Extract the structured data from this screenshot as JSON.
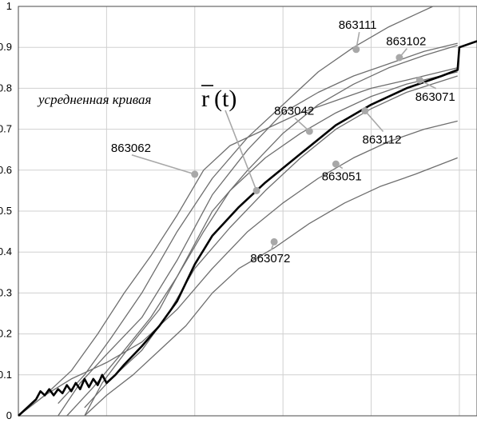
{
  "chart_data": {
    "type": "line",
    "title": "",
    "xlabel": "",
    "ylabel": "",
    "xlim": [
      0,
      5.2
    ],
    "ylim": [
      0,
      1
    ],
    "y_ticks": [
      "0",
      "0.1",
      "0.2",
      "0.3",
      "0.4",
      "0.5",
      "0.6",
      "0.7",
      "0.8",
      "0.9",
      "1"
    ],
    "x_grid": [
      0,
      1,
      2,
      3,
      4,
      5
    ],
    "grid": true,
    "colors": {
      "series": "#6e6e6e",
      "average": "#000000",
      "grid": "#d0d0d0",
      "marker": "#a8a8a8"
    },
    "annotation": {
      "text": "усредненная кривая",
      "formula": {
        "bar": "r",
        "arg": "(t)"
      },
      "pointer_to": [
        2.7,
        0.55
      ]
    },
    "series": [
      {
        "name": "863111",
        "label_at": [
          3.63,
          0.945
        ],
        "marker_at": [
          3.83,
          0.895
        ],
        "points": [
          [
            0.45,
            0.03
          ],
          [
            0.75,
            0.1
          ],
          [
            1.05,
            0.19
          ],
          [
            1.4,
            0.3
          ],
          [
            1.8,
            0.45
          ],
          [
            2.2,
            0.58
          ],
          [
            2.6,
            0.68
          ],
          [
            3.0,
            0.76
          ],
          [
            3.4,
            0.84
          ],
          [
            3.8,
            0.9
          ],
          [
            4.2,
            0.95
          ],
          [
            4.5,
            0.98
          ],
          [
            4.7,
            1.0
          ]
        ]
      },
      {
        "name": "863102",
        "label_at": [
          4.17,
          0.905
        ],
        "marker_at": [
          4.32,
          0.875
        ],
        "points": [
          [
            0.45,
            0.0
          ],
          [
            0.7,
            0.08
          ],
          [
            1.0,
            0.15
          ],
          [
            1.4,
            0.24
          ],
          [
            1.8,
            0.38
          ],
          [
            2.2,
            0.54
          ],
          [
            2.6,
            0.65
          ],
          [
            3.0,
            0.74
          ],
          [
            3.4,
            0.79
          ],
          [
            3.8,
            0.83
          ],
          [
            4.2,
            0.86
          ],
          [
            4.6,
            0.89
          ],
          [
            4.98,
            0.91
          ]
        ]
      },
      {
        "name": "863071",
        "label_at": [
          4.5,
          0.77
        ],
        "marker_at": [
          4.55,
          0.82
        ],
        "points": [
          [
            0.75,
            0.0
          ],
          [
            0.95,
            0.08
          ],
          [
            1.3,
            0.18
          ],
          [
            1.6,
            0.26
          ],
          [
            1.9,
            0.38
          ],
          [
            2.2,
            0.5
          ],
          [
            2.6,
            0.6
          ],
          [
            3.0,
            0.69
          ],
          [
            3.4,
            0.76
          ],
          [
            3.8,
            0.81
          ],
          [
            4.2,
            0.85
          ],
          [
            4.6,
            0.88
          ],
          [
            4.98,
            0.905
          ]
        ]
      },
      {
        "name": "863062",
        "label_at": [
          1.05,
          0.645
        ],
        "marker_at": [
          2.0,
          0.59
        ],
        "points": [
          [
            0.0,
            0.0
          ],
          [
            0.3,
            0.05
          ],
          [
            0.6,
            0.11
          ],
          [
            0.9,
            0.2
          ],
          [
            1.2,
            0.3
          ],
          [
            1.5,
            0.39
          ],
          [
            1.8,
            0.49
          ],
          [
            2.1,
            0.6
          ],
          [
            2.4,
            0.66
          ],
          [
            2.8,
            0.7
          ],
          [
            3.2,
            0.74
          ],
          [
            3.6,
            0.77
          ],
          [
            4.0,
            0.8
          ],
          [
            4.4,
            0.82
          ],
          [
            4.98,
            0.85
          ]
        ]
      },
      {
        "name": "863042",
        "label_at": [
          2.9,
          0.735
        ],
        "marker_at": [
          3.3,
          0.695
        ],
        "points": [
          [
            0.55,
            0.0
          ],
          [
            0.85,
            0.07
          ],
          [
            1.2,
            0.16
          ],
          [
            1.5,
            0.24
          ],
          [
            1.8,
            0.34
          ],
          [
            2.1,
            0.45
          ],
          [
            2.4,
            0.55
          ],
          [
            2.8,
            0.63
          ],
          [
            3.2,
            0.69
          ],
          [
            3.6,
            0.74
          ],
          [
            4.0,
            0.78
          ],
          [
            4.4,
            0.81
          ],
          [
            4.98,
            0.84
          ]
        ]
      },
      {
        "name": "863112",
        "label_at": [
          3.9,
          0.665
        ],
        "marker_at": [
          3.93,
          0.745
        ],
        "points": [
          [
            0.75,
            0.02
          ],
          [
            1.05,
            0.09
          ],
          [
            1.4,
            0.16
          ],
          [
            1.7,
            0.25
          ],
          [
            2.0,
            0.36
          ],
          [
            2.4,
            0.46
          ],
          [
            2.8,
            0.55
          ],
          [
            3.2,
            0.63
          ],
          [
            3.6,
            0.7
          ],
          [
            4.0,
            0.75
          ],
          [
            4.4,
            0.79
          ],
          [
            4.98,
            0.83
          ]
        ]
      },
      {
        "name": "863051",
        "label_at": [
          3.44,
          0.575
        ],
        "marker_at": [
          3.6,
          0.615
        ],
        "points": [
          [
            0.0,
            0.0
          ],
          [
            0.3,
            0.05
          ],
          [
            0.6,
            0.09
          ],
          [
            1.0,
            0.13
          ],
          [
            1.4,
            0.18
          ],
          [
            1.8,
            0.26
          ],
          [
            2.2,
            0.36
          ],
          [
            2.6,
            0.45
          ],
          [
            3.0,
            0.52
          ],
          [
            3.4,
            0.58
          ],
          [
            3.8,
            0.63
          ],
          [
            4.2,
            0.67
          ],
          [
            4.6,
            0.7
          ],
          [
            4.98,
            0.72
          ]
        ]
      },
      {
        "name": "863072",
        "label_at": [
          2.63,
          0.375
        ],
        "marker_at": [
          2.9,
          0.425
        ],
        "points": [
          [
            0.75,
            0.0
          ],
          [
            1.0,
            0.05
          ],
          [
            1.3,
            0.1
          ],
          [
            1.6,
            0.16
          ],
          [
            1.9,
            0.22
          ],
          [
            2.2,
            0.3
          ],
          [
            2.5,
            0.36
          ],
          [
            2.9,
            0.41
          ],
          [
            3.3,
            0.47
          ],
          [
            3.7,
            0.52
          ],
          [
            4.1,
            0.56
          ],
          [
            4.5,
            0.59
          ],
          [
            4.98,
            0.63
          ]
        ]
      }
    ],
    "average": {
      "points": [
        [
          0.0,
          0.0
        ],
        [
          0.1,
          0.02
        ],
        [
          0.2,
          0.04
        ],
        [
          0.25,
          0.06
        ],
        [
          0.3,
          0.05
        ],
        [
          0.35,
          0.065
        ],
        [
          0.4,
          0.05
        ],
        [
          0.45,
          0.065
        ],
        [
          0.5,
          0.055
        ],
        [
          0.55,
          0.075
        ],
        [
          0.6,
          0.06
        ],
        [
          0.65,
          0.08
        ],
        [
          0.7,
          0.065
        ],
        [
          0.75,
          0.09
        ],
        [
          0.8,
          0.07
        ],
        [
          0.85,
          0.09
        ],
        [
          0.9,
          0.075
        ],
        [
          0.95,
          0.1
        ],
        [
          1.0,
          0.08
        ],
        [
          1.1,
          0.1
        ],
        [
          1.2,
          0.125
        ],
        [
          1.4,
          0.17
        ],
        [
          1.6,
          0.22
        ],
        [
          1.8,
          0.28
        ],
        [
          2.0,
          0.37
        ],
        [
          2.2,
          0.44
        ],
        [
          2.5,
          0.51
        ],
        [
          2.8,
          0.57
        ],
        [
          3.2,
          0.64
        ],
        [
          3.6,
          0.71
        ],
        [
          4.0,
          0.76
        ],
        [
          4.4,
          0.8
        ],
        [
          4.8,
          0.83
        ],
        [
          4.98,
          0.845
        ],
        [
          5.0,
          0.9
        ],
        [
          5.2,
          0.915
        ]
      ]
    }
  }
}
